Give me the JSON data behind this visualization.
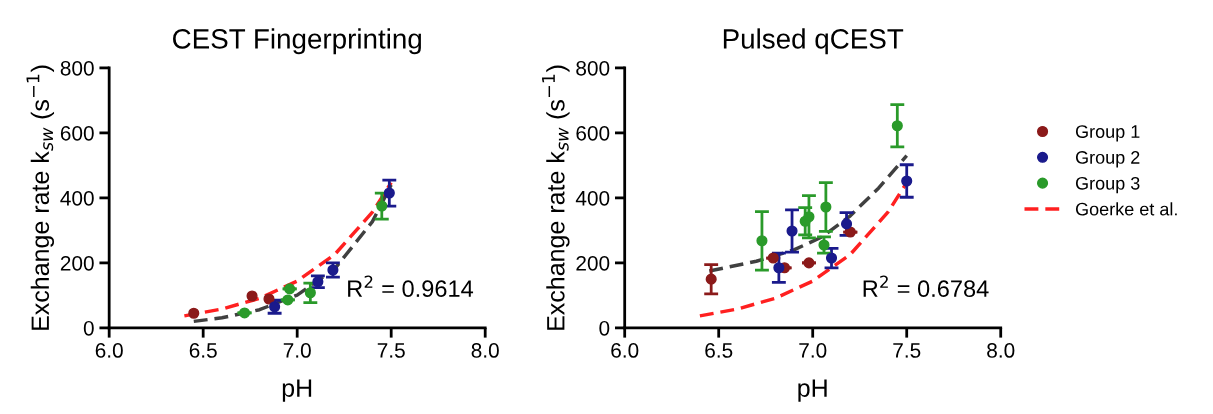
{
  "chart_data": [
    {
      "type": "scatter",
      "title": "CEST Fingerprinting",
      "xlabel": "pH",
      "ylabel": "Exchange rate k$_{sw}$ (s$^{−1}$)",
      "xlim": [
        6.0,
        8.0
      ],
      "ylim": [
        0,
        800
      ],
      "xticks": [
        {
          "value": 6.0,
          "label": "6.0"
        },
        {
          "value": 6.5,
          "label": "6.5"
        },
        {
          "value": 7.0,
          "label": "7.0"
        },
        {
          "value": 7.5,
          "label": "7.5"
        },
        {
          "value": 8.0,
          "label": "8.0"
        }
      ],
      "yticks": [
        0,
        200,
        400,
        600,
        800
      ],
      "marker": "circle",
      "annotations": [
        "R$^{2}$ = 0.9614"
      ],
      "series": [
        {
          "type": "line",
          "marker": "none",
          "line_style": "dashed",
          "color": "#ff2020",
          "x": [
            6.4,
            6.6,
            6.8,
            7.0,
            7.2,
            7.4,
            7.5
          ],
          "values": [
            37,
            58,
            91,
            144,
            226,
            356,
            447
          ]
        },
        {
          "type": "line",
          "marker": "none",
          "line_style": "dashed",
          "color": "#404040",
          "x": [
            6.45,
            6.6,
            6.8,
            7.0,
            7.2,
            7.4,
            7.5
          ],
          "values": [
            20,
            31,
            56,
            101,
            182,
            327,
            440
          ]
        },
        {
          "color": "#8b1a1a",
          "x": [
            6.45,
            6.76,
            6.85
          ],
          "values": [
            45,
            98,
            89
          ]
        },
        {
          "color": "#1a1a8c",
          "x": [
            6.88,
            7.11,
            7.19,
            7.49
          ],
          "values": [
            65,
            142,
            178,
            415
          ],
          "errors": [
            20,
            18,
            22,
            40
          ]
        },
        {
          "color": "#2a9a2a",
          "x": [
            6.72,
            6.95,
            6.96,
            7.07,
            7.45
          ],
          "values": [
            46,
            86,
            120,
            108,
            375
          ],
          "errors": [
            null,
            null,
            null,
            30,
            40
          ]
        }
      ]
    },
    {
      "type": "scatter",
      "title": "Pulsed qCEST",
      "xlabel": "pH",
      "ylabel": "Exchange rate k$_{sw}$ (s$^{−1}$)",
      "xlim": [
        6.0,
        8.0
      ],
      "ylim": [
        0,
        800
      ],
      "xticks": [
        {
          "value": 6.0,
          "label": "6.0"
        },
        {
          "value": 6.5,
          "label": "6.5"
        },
        {
          "value": 7.0,
          "label": "7.0"
        },
        {
          "value": 7.5,
          "label": "7.5"
        },
        {
          "value": 8.0,
          "label": "8.0"
        }
      ],
      "yticks": [
        0,
        200,
        400,
        600,
        800
      ],
      "marker": "circle",
      "legend": "right",
      "annotations": [
        "R$^{2}$ = 0.6784"
      ],
      "series": [
        {
          "name": "Group 1",
          "color": "#8b1a1a",
          "x": [
            6.46,
            6.79,
            6.85,
            6.98,
            7.2
          ],
          "values": [
            150,
            215,
            185,
            200,
            295
          ],
          "errors": [
            45,
            null,
            null,
            null,
            null
          ]
        },
        {
          "name": "Group 2",
          "color": "#1a1a8c",
          "x": [
            6.82,
            6.89,
            7.1,
            7.18,
            7.5
          ],
          "values": [
            185,
            298,
            215,
            320,
            452
          ],
          "errors": [
            45,
            65,
            30,
            35,
            50
          ]
        },
        {
          "name": "Group 3",
          "color": "#2a9a2a",
          "x": [
            6.73,
            6.96,
            6.98,
            7.06,
            7.07,
            7.45
          ],
          "values": [
            268,
            328,
            342,
            255,
            372,
            622
          ],
          "errors": [
            90,
            42,
            65,
            25,
            75,
            65
          ]
        },
        {
          "type": "line",
          "marker": "none",
          "name": "Goerke et al.",
          "line_style": "dashed",
          "color": "#ff2020",
          "x": [
            6.4,
            6.6,
            6.8,
            7.0,
            7.2,
            7.4,
            7.5
          ],
          "values": [
            37,
            58,
            91,
            144,
            226,
            356,
            447
          ]
        },
        {
          "type": "line",
          "marker": "none",
          "line_style": "dashed",
          "color": "#404040",
          "x": [
            6.45,
            6.7,
            6.9,
            7.05,
            7.2,
            7.35,
            7.5
          ],
          "values": [
            175,
            205,
            240,
            280,
            345,
            430,
            530
          ]
        }
      ]
    }
  ]
}
